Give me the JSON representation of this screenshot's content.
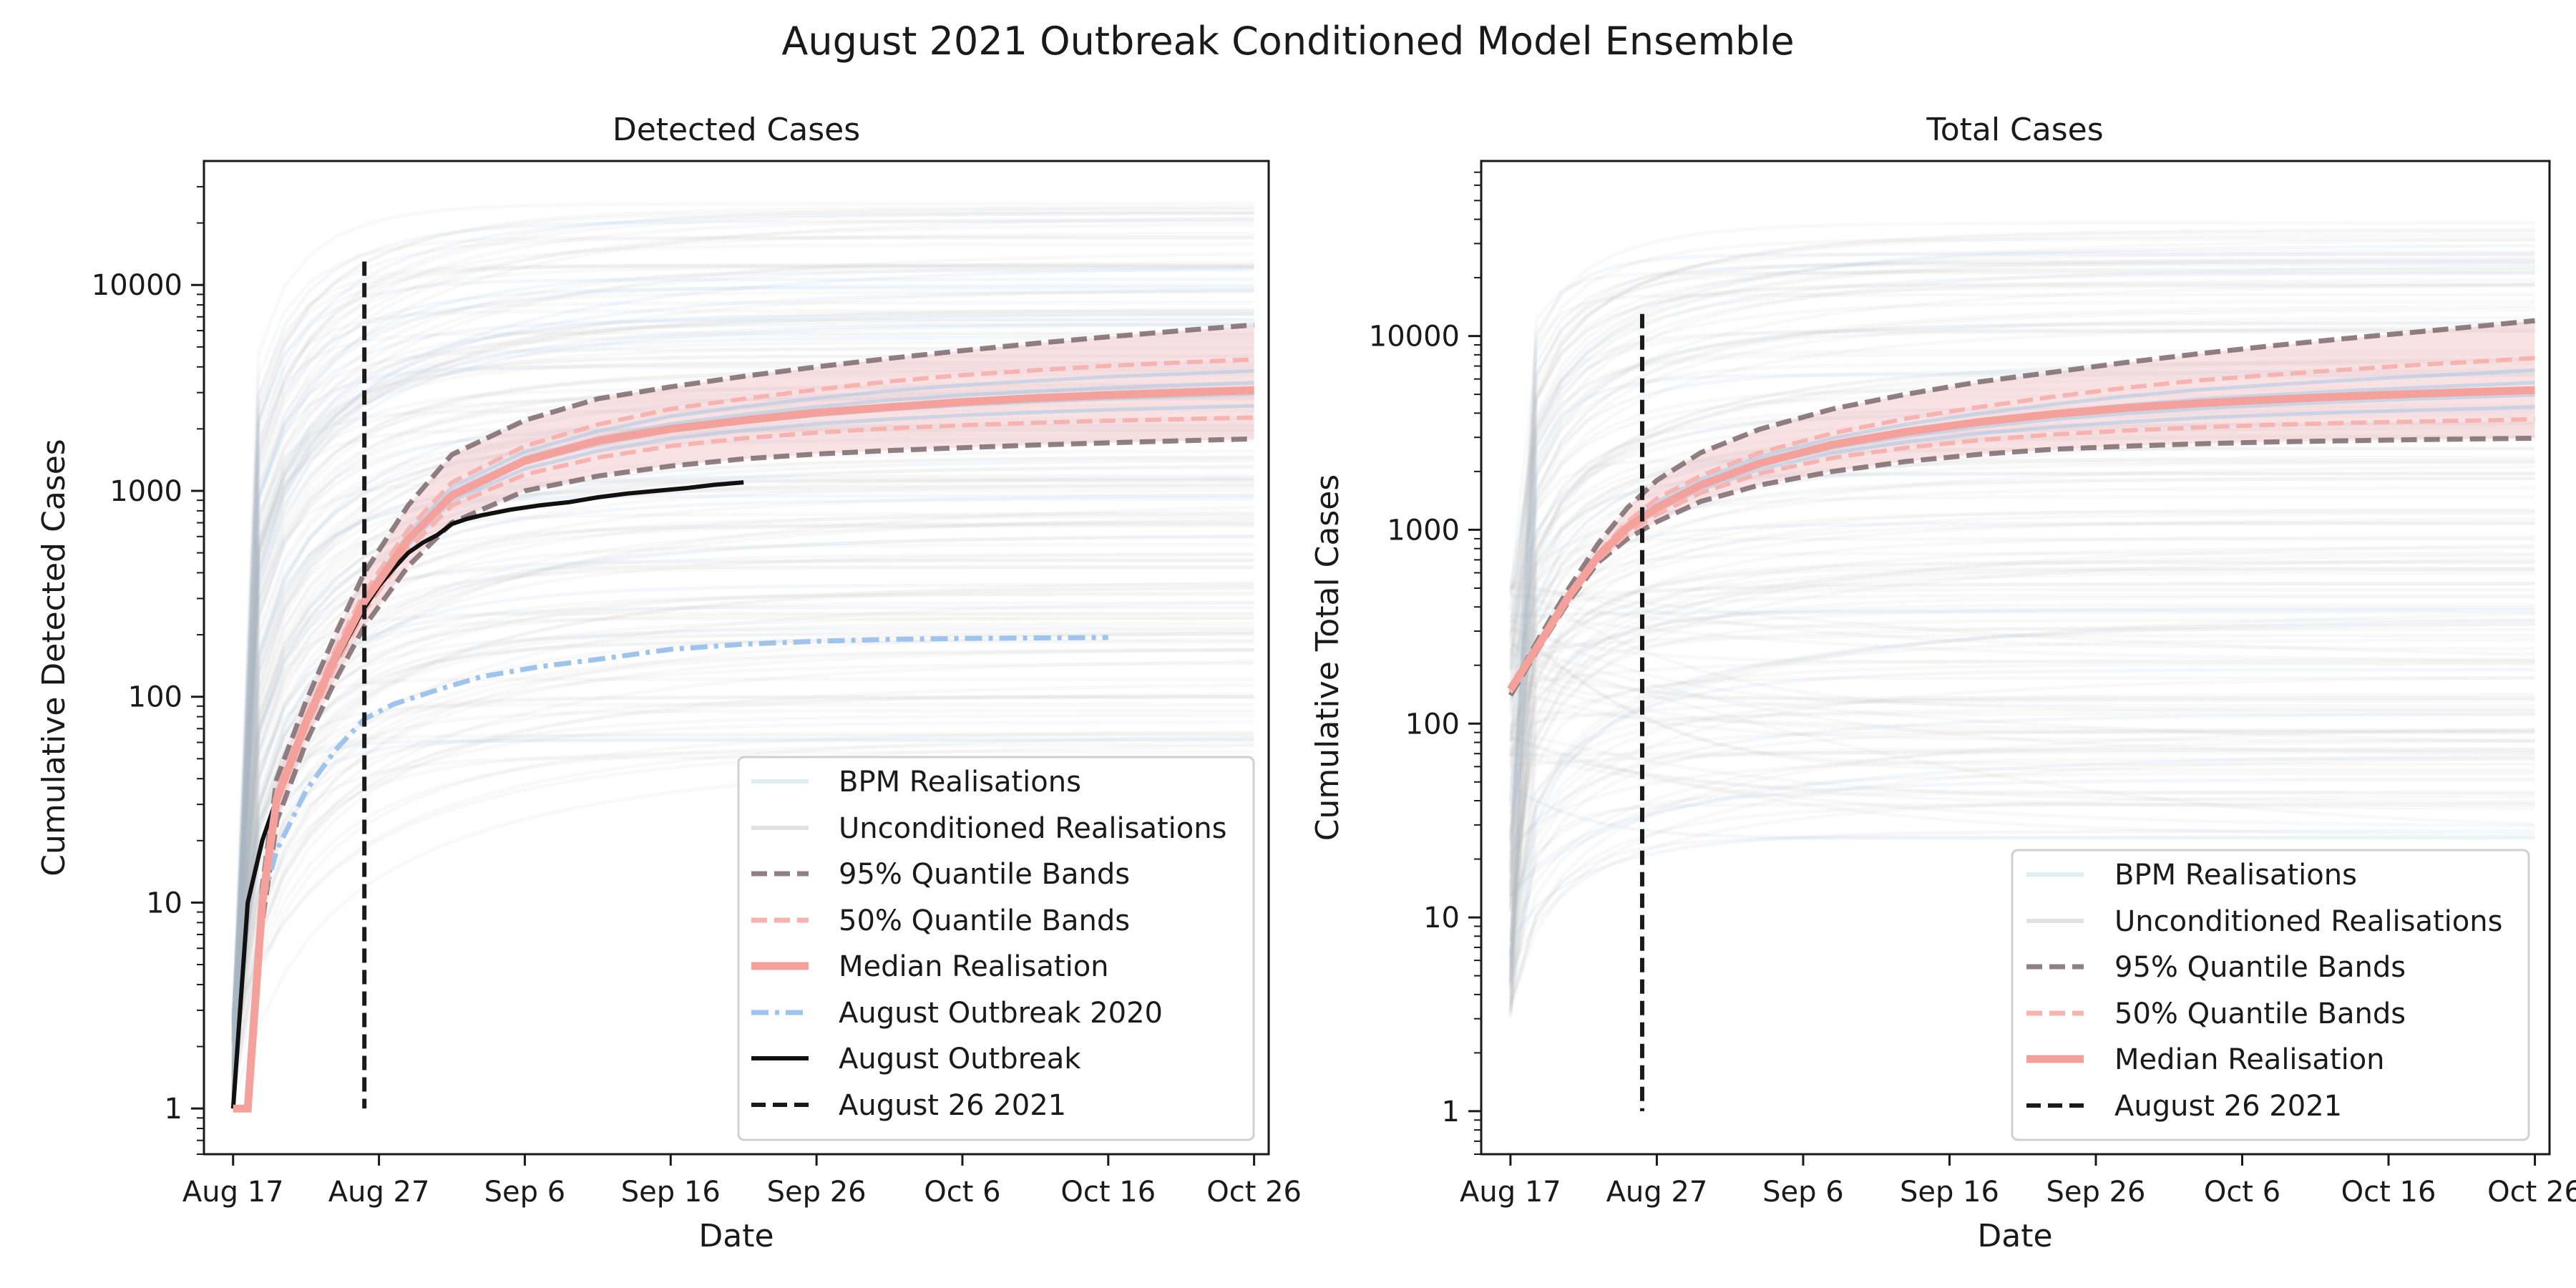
{
  "figure": {
    "title": "August 2021 Outbreak Conditioned Model Ensemble"
  },
  "chart_data": [
    {
      "type": "line",
      "title": "Detected Cases",
      "xlabel": "Date",
      "ylabel": "Cumulative Detected Cases",
      "yscale": "log",
      "ylim": [
        0.6,
        40000
      ],
      "xlim": [
        "2021-08-15",
        "2021-10-27"
      ],
      "x_ticks": [
        "Aug 17",
        "Aug 27",
        "Sep 6",
        "Sep 16",
        "Sep 26",
        "Oct 6",
        "Oct 16",
        "Oct 26"
      ],
      "y_ticks": [
        "1",
        "10",
        "100",
        "1000",
        "10000"
      ],
      "legend_position": "lower-right",
      "legend": [
        "BPM Realisations",
        "Unconditioned Realisations",
        "95% Quantile Bands",
        "50% Quantile Bands",
        "Median Realisation",
        "August Outbreak 2020",
        "August Outbreak",
        "August 26 2021"
      ],
      "vline_date": "2021-08-26",
      "vline_top": 13000,
      "x": [
        "2021-08-17",
        "2021-08-18",
        "2021-08-19",
        "2021-08-20",
        "2021-08-22",
        "2021-08-24",
        "2021-08-26",
        "2021-08-29",
        "2021-09-01",
        "2021-09-06",
        "2021-09-11",
        "2021-09-16",
        "2021-09-21",
        "2021-09-26",
        "2021-10-01",
        "2021-10-06",
        "2021-10-11",
        "2021-10-16",
        "2021-10-21",
        "2021-10-26"
      ],
      "series": [
        {
          "name": "95% Quantile Bands",
          "role": "q95_upper",
          "values": [
            1,
            1,
            12,
            40,
            95,
            200,
            400,
            850,
            1500,
            2200,
            2800,
            3200,
            3600,
            4000,
            4400,
            4800,
            5200,
            5600,
            6000,
            6400
          ]
        },
        {
          "name": "95% Quantile Bands",
          "role": "q95_lower",
          "values": [
            1,
            1,
            8,
            25,
            60,
            120,
            220,
            430,
            700,
            1000,
            1180,
            1320,
            1430,
            1510,
            1570,
            1620,
            1670,
            1710,
            1750,
            1790
          ]
        },
        {
          "name": "50% Quantile Bands",
          "role": "q50_upper",
          "values": [
            1,
            1,
            11,
            35,
            80,
            170,
            320,
            650,
            1100,
            1650,
            2100,
            2500,
            2800,
            3100,
            3400,
            3650,
            3850,
            4050,
            4200,
            4350
          ]
        },
        {
          "name": "50% Quantile Bands",
          "role": "q50_lower",
          "values": [
            1,
            1,
            9,
            30,
            70,
            140,
            260,
            520,
            850,
            1200,
            1450,
            1650,
            1800,
            1920,
            2010,
            2080,
            2140,
            2190,
            2230,
            2270
          ]
        },
        {
          "name": "Median Realisation",
          "role": "median",
          "values": [
            1,
            1,
            10,
            32,
            75,
            155,
            290,
            580,
            950,
            1400,
            1750,
            2000,
            2200,
            2400,
            2550,
            2700,
            2820,
            2920,
            3000,
            3080
          ]
        }
      ],
      "observed": [
        {
          "name": "August Outbreak",
          "x": [
            "2021-08-17",
            "2021-08-18",
            "2021-08-19",
            "2021-08-20",
            "2021-08-21",
            "2021-08-22",
            "2021-08-23",
            "2021-08-24",
            "2021-08-25",
            "2021-08-26",
            "2021-08-27",
            "2021-08-28",
            "2021-08-29",
            "2021-08-30",
            "2021-08-31",
            "2021-09-01",
            "2021-09-02",
            "2021-09-03",
            "2021-09-05",
            "2021-09-07",
            "2021-09-09",
            "2021-09-11",
            "2021-09-13",
            "2021-09-15",
            "2021-09-17",
            "2021-09-19",
            "2021-09-21"
          ],
          "values": [
            1,
            10,
            20,
            32,
            50,
            72,
            105,
            148,
            200,
            270,
            345,
            420,
            500,
            560,
            610,
            690,
            730,
            760,
            810,
            850,
            880,
            930,
            970,
            1000,
            1030,
            1070,
            1100
          ]
        },
        {
          "name": "August Outbreak 2020",
          "x": [
            "2021-08-18",
            "2021-08-19",
            "2021-08-20",
            "2021-08-22",
            "2021-08-24",
            "2021-08-26",
            "2021-08-28",
            "2021-08-31",
            "2021-09-03",
            "2021-09-07",
            "2021-09-11",
            "2021-09-16",
            "2021-09-21",
            "2021-09-26",
            "2021-10-01",
            "2021-10-06",
            "2021-10-11",
            "2021-10-16"
          ],
          "values": [
            1,
            10,
            18,
            35,
            55,
            78,
            92,
            108,
            125,
            140,
            152,
            170,
            180,
            186,
            190,
            192,
            193,
            194
          ]
        }
      ]
    },
    {
      "type": "line",
      "title": "Total Cases",
      "xlabel": "Date",
      "ylabel": "Cumulative Total Cases",
      "yscale": "log",
      "ylim": [
        0.6,
        80000
      ],
      "xlim": [
        "2021-08-15",
        "2021-10-27"
      ],
      "x_ticks": [
        "Aug 17",
        "Aug 27",
        "Sep 6",
        "Sep 16",
        "Sep 26",
        "Oct 6",
        "Oct 16",
        "Oct 26"
      ],
      "y_ticks": [
        "1",
        "10",
        "100",
        "1000",
        "10000"
      ],
      "legend_position": "lower-right",
      "legend": [
        "BPM Realisations",
        "Unconditioned Realisations",
        "95% Quantile Bands",
        "50% Quantile Bands",
        "Median Realisation",
        "August 26 2021"
      ],
      "vline_date": "2021-08-26",
      "vline_top": 13000,
      "x": [
        "2021-08-17",
        "2021-08-19",
        "2021-08-21",
        "2021-08-23",
        "2021-08-25",
        "2021-08-27",
        "2021-08-30",
        "2021-09-03",
        "2021-09-08",
        "2021-09-13",
        "2021-09-18",
        "2021-09-23",
        "2021-09-28",
        "2021-10-03",
        "2021-10-08",
        "2021-10-13",
        "2021-10-18",
        "2021-10-23",
        "2021-10-26"
      ],
      "series": [
        {
          "name": "95% Quantile Bands",
          "role": "q95_upper",
          "values": [
            150,
            280,
            500,
            850,
            1300,
            1800,
            2500,
            3300,
            4200,
            5000,
            5800,
            6500,
            7300,
            8100,
            8900,
            9700,
            10500,
            11400,
            12000
          ]
        },
        {
          "name": "95% Quantile Bands",
          "role": "q95_lower",
          "values": [
            140,
            250,
            430,
            680,
            900,
            1100,
            1400,
            1700,
            2000,
            2250,
            2450,
            2600,
            2700,
            2780,
            2840,
            2880,
            2920,
            2950,
            2970
          ]
        },
        {
          "name": "50% Quantile Bands",
          "role": "q50_upper",
          "values": [
            150,
            270,
            470,
            760,
            1100,
            1450,
            1900,
            2500,
            3150,
            3750,
            4300,
            4850,
            5400,
            5900,
            6300,
            6700,
            7100,
            7450,
            7700
          ]
        },
        {
          "name": "50% Quantile Bands",
          "role": "q50_lower",
          "values": [
            145,
            255,
            445,
            700,
            960,
            1200,
            1550,
            1950,
            2350,
            2650,
            2900,
            3100,
            3250,
            3380,
            3480,
            3560,
            3620,
            3680,
            3720
          ]
        },
        {
          "name": "Median Realisation",
          "role": "median",
          "values": [
            150,
            260,
            455,
            730,
            1030,
            1300,
            1700,
            2200,
            2750,
            3200,
            3600,
            3950,
            4250,
            4500,
            4700,
            4880,
            5040,
            5180,
            5260
          ]
        }
      ]
    }
  ],
  "colors": {
    "median": "#f4a09b",
    "q95": "#7d6a6d",
    "q50": "#f6b3af",
    "band": "#f0bfc3",
    "bpm": "#a7c8e6",
    "unconditioned": "#b4b4b4",
    "august2020": "#9ec4ee",
    "observed": "#111111",
    "vline": "#1a1a1a"
  }
}
